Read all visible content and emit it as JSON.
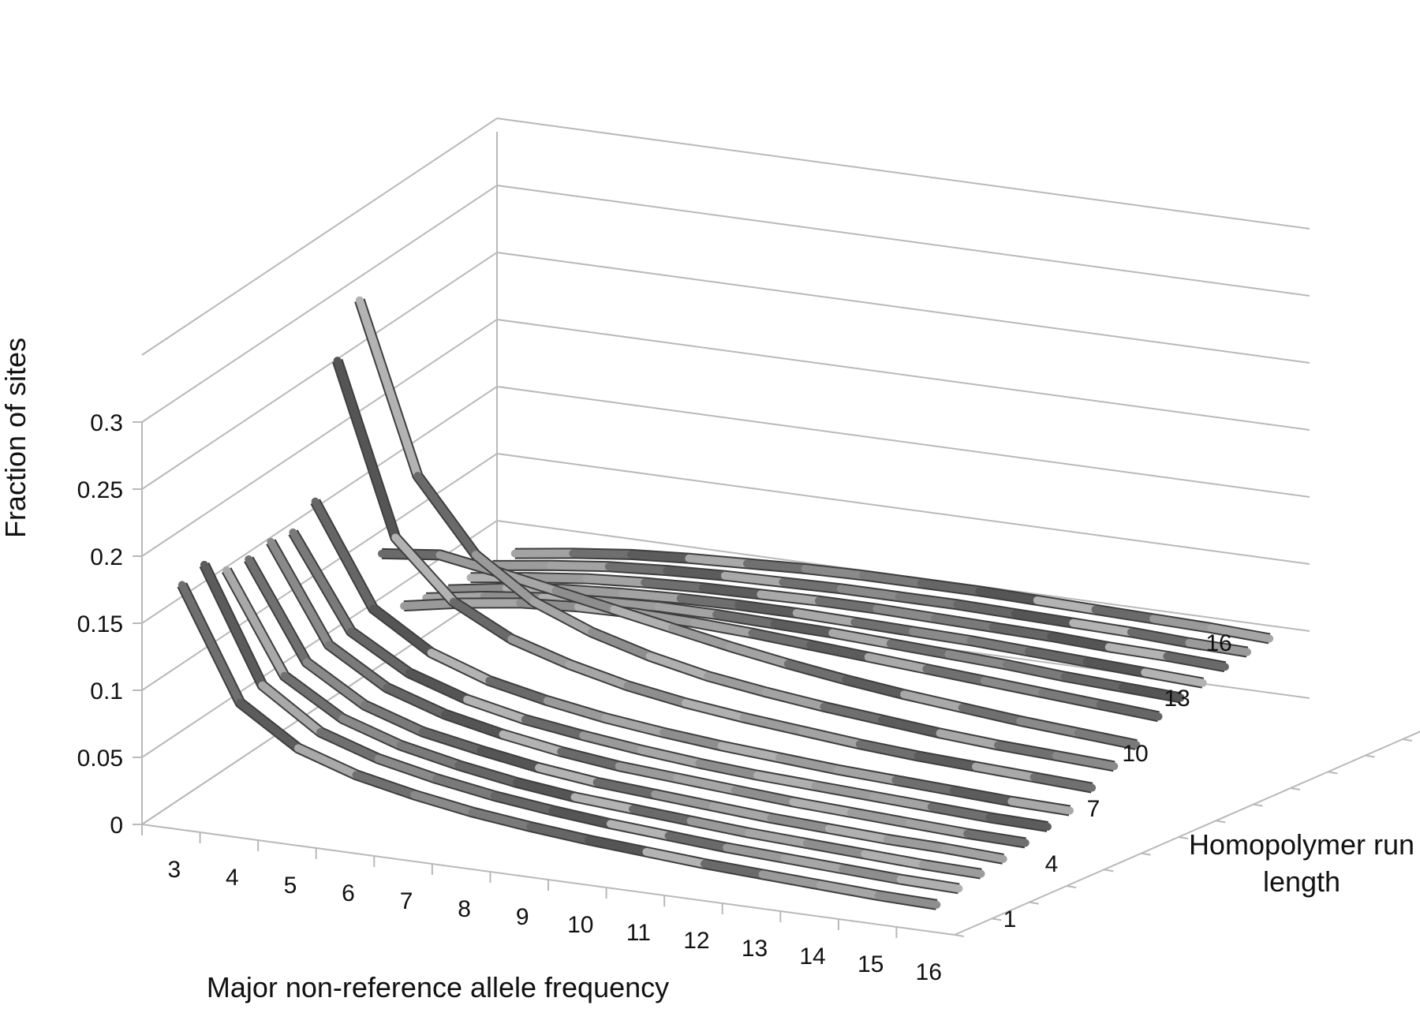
{
  "chart_data": {
    "type": "line",
    "subtype": "3d-line",
    "title": "",
    "zlabel": "Fraction of sites",
    "xlabel": "Major non-reference allele frequency",
    "ylabel_line1": "Homopolymer run",
    "ylabel_line2": "length",
    "zlim": [
      0,
      0.3
    ],
    "z_ticks": [
      "0",
      "0.05",
      "0.1",
      "0.15",
      "0.2",
      "0.25",
      "0.3"
    ],
    "x_ticks": [
      "3",
      "4",
      "5",
      "6",
      "7",
      "8",
      "9",
      "10",
      "11",
      "12",
      "13",
      "14",
      "15",
      "16"
    ],
    "y_ticks": [
      "1",
      "4",
      "7",
      "10",
      "13",
      "16"
    ],
    "grid": true,
    "legend": "none",
    "categories": [
      3,
      4,
      5,
      6,
      7,
      8,
      9,
      10,
      11,
      12,
      13,
      14,
      15,
      16
    ],
    "series": [
      {
        "run_length": 1,
        "values": [
          0.176,
          0.094,
          0.066,
          0.052,
          0.043,
          0.036,
          0.031,
          0.027,
          0.024,
          0.021,
          0.019,
          0.017,
          0.015,
          0.014
        ]
      },
      {
        "run_length": 2,
        "values": [
          0.18,
          0.096,
          0.067,
          0.053,
          0.044,
          0.037,
          0.032,
          0.028,
          0.025,
          0.022,
          0.02,
          0.018,
          0.016,
          0.015
        ]
      },
      {
        "run_length": 3,
        "values": [
          0.165,
          0.092,
          0.066,
          0.052,
          0.043,
          0.036,
          0.031,
          0.028,
          0.025,
          0.022,
          0.02,
          0.018,
          0.016,
          0.015
        ]
      },
      {
        "run_length": 4,
        "values": [
          0.162,
          0.091,
          0.065,
          0.051,
          0.043,
          0.036,
          0.031,
          0.028,
          0.025,
          0.022,
          0.02,
          0.018,
          0.017,
          0.015
        ]
      },
      {
        "run_length": 5,
        "values": [
          0.164,
          0.093,
          0.067,
          0.053,
          0.044,
          0.037,
          0.032,
          0.029,
          0.026,
          0.023,
          0.021,
          0.019,
          0.017,
          0.016
        ]
      },
      {
        "run_length": 6,
        "values": [
          0.16,
          0.092,
          0.067,
          0.053,
          0.044,
          0.038,
          0.033,
          0.029,
          0.026,
          0.024,
          0.022,
          0.02,
          0.018,
          0.017
        ]
      },
      {
        "run_length": 7,
        "values": [
          0.172,
          0.098,
          0.071,
          0.056,
          0.047,
          0.04,
          0.035,
          0.031,
          0.028,
          0.025,
          0.023,
          0.021,
          0.019,
          0.018
        ]
      },
      {
        "run_length": 8,
        "values": [
          0.266,
          0.14,
          0.098,
          0.076,
          0.063,
          0.053,
          0.046,
          0.041,
          0.037,
          0.033,
          0.03,
          0.028,
          0.026,
          0.024
        ]
      },
      {
        "run_length": 9,
        "values": [
          0.3,
          0.175,
          0.122,
          0.093,
          0.076,
          0.064,
          0.055,
          0.049,
          0.044,
          0.04,
          0.036,
          0.033,
          0.031,
          0.029
        ]
      },
      {
        "run_length": 10,
        "values": [
          0.1,
          0.105,
          0.098,
          0.09,
          0.082,
          0.074,
          0.066,
          0.059,
          0.053,
          0.048,
          0.044,
          0.04,
          0.037,
          0.034
        ]
      },
      {
        "run_length": 11,
        "values": [
          0.05,
          0.058,
          0.064,
          0.067,
          0.068,
          0.067,
          0.065,
          0.062,
          0.059,
          0.056,
          0.053,
          0.05,
          0.047,
          0.044
        ]
      },
      {
        "run_length": 12,
        "values": [
          0.045,
          0.052,
          0.057,
          0.06,
          0.062,
          0.062,
          0.061,
          0.06,
          0.058,
          0.056,
          0.054,
          0.051,
          0.049,
          0.047
        ]
      },
      {
        "run_length": 13,
        "values": [
          0.04,
          0.047,
          0.052,
          0.055,
          0.057,
          0.058,
          0.058,
          0.057,
          0.056,
          0.055,
          0.053,
          0.051,
          0.049,
          0.047
        ]
      },
      {
        "run_length": 14,
        "values": [
          0.038,
          0.044,
          0.049,
          0.052,
          0.054,
          0.055,
          0.056,
          0.056,
          0.055,
          0.054,
          0.053,
          0.051,
          0.05,
          0.048
        ]
      },
      {
        "run_length": 15,
        "values": [
          0.036,
          0.042,
          0.047,
          0.05,
          0.052,
          0.053,
          0.054,
          0.054,
          0.054,
          0.053,
          0.052,
          0.051,
          0.049,
          0.048
        ]
      },
      {
        "run_length": 16,
        "values": [
          0.034,
          0.04,
          0.045,
          0.048,
          0.05,
          0.052,
          0.053,
          0.053,
          0.053,
          0.052,
          0.051,
          0.05,
          0.049,
          0.047
        ]
      }
    ]
  }
}
